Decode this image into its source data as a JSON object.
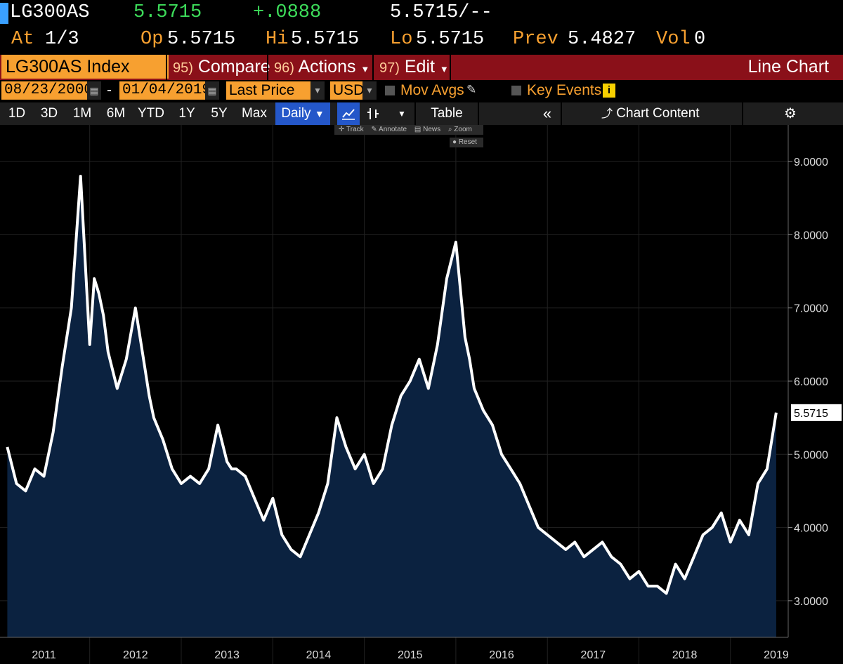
{
  "header": {
    "ticker": "LG300AS",
    "last": "5.5715",
    "change": "+.0888",
    "bid_ask": "5.5715/--",
    "at_label": "At",
    "at_value": "1/3",
    "op_label": "Op",
    "op_value": "5.5715",
    "hi_label": "Hi",
    "hi_value": "5.5715",
    "lo_label": "Lo",
    "lo_value": "5.5715",
    "prev_label": "Prev",
    "prev_value": "5.4827",
    "vol_label": "Vol",
    "vol_value": "0"
  },
  "command_bar": {
    "security": "LG300AS Index",
    "compare_num": "95)",
    "compare_label": "Compare",
    "actions_num": "96)",
    "actions_label": "Actions",
    "edit_num": "97)",
    "edit_label": "Edit",
    "chart_type": "Line Chart"
  },
  "filters": {
    "start_date": "08/23/2000",
    "dash": "-",
    "end_date": "01/04/2019",
    "field": "Last Price",
    "currency": "USD",
    "mov_avgs": "Mov Avgs",
    "key_events": "Key Events"
  },
  "range_bar": {
    "ranges": [
      "1D",
      "3D",
      "1M",
      "6M",
      "YTD",
      "1Y",
      "5Y",
      "Max"
    ],
    "frequency": "Daily",
    "table": "Table",
    "chart_content": "Chart Content"
  },
  "chart_tools": {
    "track": "Track",
    "annotate": "Annotate",
    "news": "News",
    "zoom": "Zoom",
    "reset": "Reset"
  },
  "colors": {
    "line": "#ffffff",
    "fill": "#0b2240",
    "accent_orange": "#f7a030",
    "command_red": "#8a1019",
    "positive_green": "#3ddc5a",
    "selected_blue": "#2457c9"
  },
  "chart_data": {
    "type": "area",
    "x_tick_labels": [
      "2011",
      "2012",
      "2013",
      "2014",
      "2015",
      "2016",
      "2017",
      "2018",
      "2019"
    ],
    "y_ticks": [
      3.0,
      4.0,
      5.0,
      6.0,
      7.0,
      8.0,
      9.0
    ],
    "y_tick_labels": [
      "3.0000",
      "4.0000",
      "5.0000",
      "6.0000",
      "7.0000",
      "8.0000",
      "9.0000"
    ],
    "ylim": [
      2.5,
      9.5
    ],
    "last_value_label": "5.5715",
    "series": [
      {
        "x": [
          2010.6,
          2010.7,
          2010.8,
          2010.9,
          2011.0,
          2011.1,
          2011.2,
          2011.3,
          2011.4,
          2011.5,
          2011.55,
          2011.6,
          2011.65,
          2011.7,
          2011.8,
          2011.9,
          2012.0,
          2012.1,
          2012.15,
          2012.2,
          2012.3,
          2012.4,
          2012.5,
          2012.6,
          2012.7,
          2012.8,
          2012.9,
          2013.0,
          2013.05,
          2013.1,
          2013.2,
          2013.3,
          2013.4,
          2013.5,
          2013.6,
          2013.7,
          2013.8,
          2013.9,
          2014.0,
          2014.1,
          2014.2,
          2014.3,
          2014.4,
          2014.5,
          2014.6,
          2014.7,
          2014.8,
          2014.9,
          2015.0,
          2015.1,
          2015.2,
          2015.3,
          2015.4,
          2015.5,
          2015.6,
          2015.65,
          2015.7,
          2015.8,
          2015.9,
          2016.0,
          2016.1,
          2016.2,
          2016.3,
          2016.4,
          2016.5,
          2016.6,
          2016.7,
          2016.8,
          2016.9,
          2017.0,
          2017.1,
          2017.2,
          2017.3,
          2017.4,
          2017.5,
          2017.6,
          2017.7,
          2017.8,
          2017.9,
          2018.0,
          2018.1,
          2018.2,
          2018.3,
          2018.4,
          2018.5,
          2018.6,
          2018.7,
          2018.8,
          2018.9,
          2019.0
        ],
        "y": [
          5.1,
          4.6,
          4.5,
          4.8,
          4.7,
          5.3,
          6.2,
          7.0,
          8.8,
          6.5,
          7.4,
          7.2,
          6.9,
          6.4,
          5.9,
          6.3,
          7.0,
          6.2,
          5.8,
          5.5,
          5.2,
          4.8,
          4.6,
          4.7,
          4.6,
          4.8,
          5.4,
          4.9,
          4.8,
          4.8,
          4.7,
          4.4,
          4.1,
          4.4,
          3.9,
          3.7,
          3.6,
          3.9,
          4.2,
          4.6,
          5.5,
          5.1,
          4.8,
          5.0,
          4.6,
          4.8,
          5.4,
          5.8,
          6.0,
          6.3,
          5.9,
          6.5,
          7.4,
          7.9,
          6.6,
          6.3,
          5.9,
          5.6,
          5.4,
          5.0,
          4.8,
          4.6,
          4.3,
          4.0,
          3.9,
          3.8,
          3.7,
          3.8,
          3.6,
          3.7,
          3.8,
          3.6,
          3.5,
          3.3,
          3.4,
          3.2,
          3.2,
          3.1,
          3.5,
          3.3,
          3.6,
          3.9,
          4.0,
          4.2,
          3.8,
          4.1,
          3.9,
          4.6,
          4.8,
          5.57
        ]
      }
    ]
  }
}
